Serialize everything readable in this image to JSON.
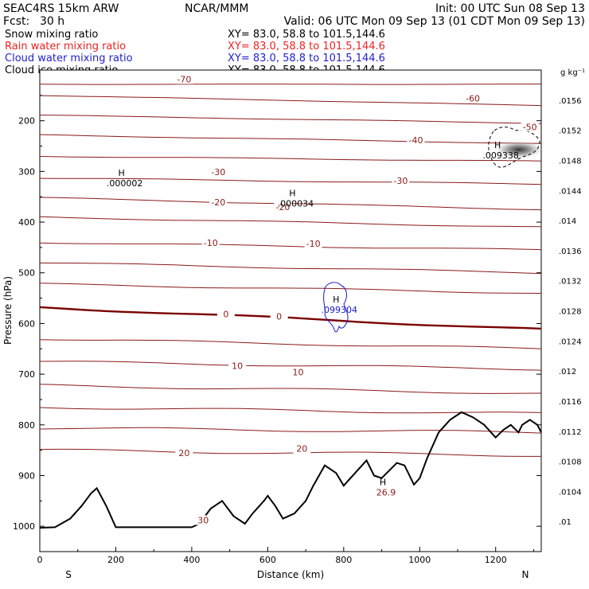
{
  "header": {
    "model": "SEAC4RS 15km ARW",
    "org": "NCAR/MMM",
    "init": "Init: 00 UTC Sun 08 Sep 13",
    "fcst_label": "Fcst:",
    "fcst_value": "30 h",
    "valid": "Valid: 06 UTC Mon 09 Sep 13 (01 CDT Mon 09 Sep 13)"
  },
  "fields": [
    {
      "label": "Snow mixing ratio",
      "xy": "XY=  83.0, 58.8 to 101.5,144.6",
      "color": "#000000"
    },
    {
      "label": "Rain water mixing ratio",
      "xy": "XY=  83.0, 58.8 to 101.5,144.6",
      "color": "#ee2222"
    },
    {
      "label": "Cloud water mixing ratio",
      "xy": "XY=  83.0, 58.8 to 101.5,144.6",
      "color": "#2222cc"
    },
    {
      "label": "Cloud ice mixing ratio",
      "xy": "XY=  83.0, 58.8 to 101.5,144.6",
      "color": "#000000"
    }
  ],
  "colors": {
    "temperature": "#8b1a1a",
    "freezing": "#7a0000",
    "terrain": "#000000",
    "cloud_water": "#1a1acc",
    "cloud_ice": "#000000"
  },
  "chart_data": {
    "type": "contour",
    "xlabel": "Distance (km)",
    "ylabel": "Pressure (hPa)",
    "xlim": [
      0,
      1320
    ],
    "ylim": [
      1050,
      100
    ],
    "x_ticks": [
      "0",
      "200",
      "400",
      "600",
      "800",
      "1000",
      "1200"
    ],
    "y_ticks": [
      "200",
      "300",
      "400",
      "500",
      "600",
      "700",
      "800",
      "900",
      "1000"
    ],
    "endpoints": {
      "left": "S",
      "right": "N"
    },
    "isotherms": {
      "label_color": "#8b1a1a",
      "lines": [
        {
          "p": [
            128,
            128
          ],
          "label": ""
        },
        {
          "p": [
            150,
            170
          ],
          "label": "-60"
        },
        {
          "p": [
            189,
            205
          ],
          "label": "-50"
        },
        {
          "p": [
            228,
            245
          ],
          "label": "-40"
        },
        {
          "p": [
            270,
            280
          ],
          "label": "-30"
        },
        {
          "p": [
            313,
            325
          ],
          "label": ""
        },
        {
          "p": [
            352,
            375
          ],
          "label": "-20"
        },
        {
          "p": [
            390,
            410
          ],
          "label": ""
        },
        {
          "p": [
            440,
            455
          ],
          "label": "-10"
        },
        {
          "p": [
            480,
            500
          ],
          "label": ""
        },
        {
          "p": [
            522,
            540
          ],
          "label": ""
        },
        {
          "p": [
            568,
            612
          ],
          "label": "0"
        },
        {
          "p": [
            630,
            650
          ],
          "label": ""
        },
        {
          "p": [
            675,
            690
          ],
          "label": "10"
        },
        {
          "p": [
            722,
            738
          ],
          "label": ""
        },
        {
          "p": [
            765,
            778
          ],
          "label": ""
        },
        {
          "p": [
            806,
            815
          ],
          "label": ""
        },
        {
          "p": [
            850,
            860
          ],
          "label": "20"
        }
      ],
      "label_positions": [
        {
          "text": "-70",
          "x": 380,
          "p": 118
        },
        {
          "text": "-60",
          "x": 1140,
          "p": 156
        },
        {
          "text": "-50",
          "x": 1290,
          "p": 212
        },
        {
          "text": "-40",
          "x": 990,
          "p": 238
        },
        {
          "text": "-30",
          "x": 470,
          "p": 301
        },
        {
          "text": "-30",
          "x": 950,
          "p": 318
        },
        {
          "text": "-20",
          "x": 470,
          "p": 361
        },
        {
          "text": "-20",
          "x": 640,
          "p": 370
        },
        {
          "text": "-10",
          "x": 450,
          "p": 441
        },
        {
          "text": "-10",
          "x": 720,
          "p": 442
        },
        {
          "text": "0",
          "x": 490,
          "p": 581
        },
        {
          "text": "0",
          "x": 630,
          "p": 586
        },
        {
          "text": "10",
          "x": 520,
          "p": 683
        },
        {
          "text": "10",
          "x": 680,
          "p": 696
        },
        {
          "text": "20",
          "x": 380,
          "p": 855
        },
        {
          "text": "20",
          "x": 690,
          "p": 847
        },
        {
          "text": "30",
          "x": 430,
          "p": 988
        }
      ]
    },
    "extrema": [
      {
        "mark": "H",
        "value": ".000002",
        "x": 215,
        "p": 315
      },
      {
        "mark": "H",
        "value": ".000034",
        "x": 665,
        "p": 355
      },
      {
        "mark": "H",
        "value": ".099304",
        "x": 780,
        "p": 565
      },
      {
        "mark": "H",
        "value": ".009338",
        "x": 1205,
        "p": 260
      },
      {
        "mark": "H",
        "value": "26.9",
        "x": 903,
        "p": 925
      }
    ],
    "terrain_profile": {
      "x": [
        0,
        40,
        80,
        110,
        135,
        150,
        175,
        200,
        300,
        400,
        420,
        450,
        480,
        510,
        540,
        560,
        590,
        600,
        620,
        640,
        670,
        700,
        720,
        750,
        780,
        800,
        830,
        860,
        880,
        900,
        940,
        960,
        985,
        1000,
        1020,
        1050,
        1080,
        1110,
        1140,
        1170,
        1200,
        1220,
        1240,
        1260,
        1270,
        1290,
        1310,
        1320
      ],
      "p": [
        1003,
        1002,
        985,
        960,
        935,
        925,
        960,
        1002,
        1002,
        1002,
        995,
        965,
        950,
        980,
        995,
        975,
        950,
        940,
        960,
        985,
        975,
        950,
        920,
        880,
        895,
        920,
        895,
        870,
        900,
        905,
        875,
        880,
        918,
        905,
        865,
        815,
        790,
        775,
        785,
        800,
        825,
        810,
        800,
        815,
        800,
        790,
        800,
        815
      ]
    },
    "colorbar": {
      "units": "g kg⁻¹",
      "ticks": [
        ".0156",
        ".0152",
        ".0148",
        ".0144",
        ".014",
        ".0136",
        ".0132",
        ".0128",
        ".0124",
        ".012",
        ".0116",
        ".0112",
        ".0108",
        ".0104",
        ".01"
      ]
    }
  }
}
